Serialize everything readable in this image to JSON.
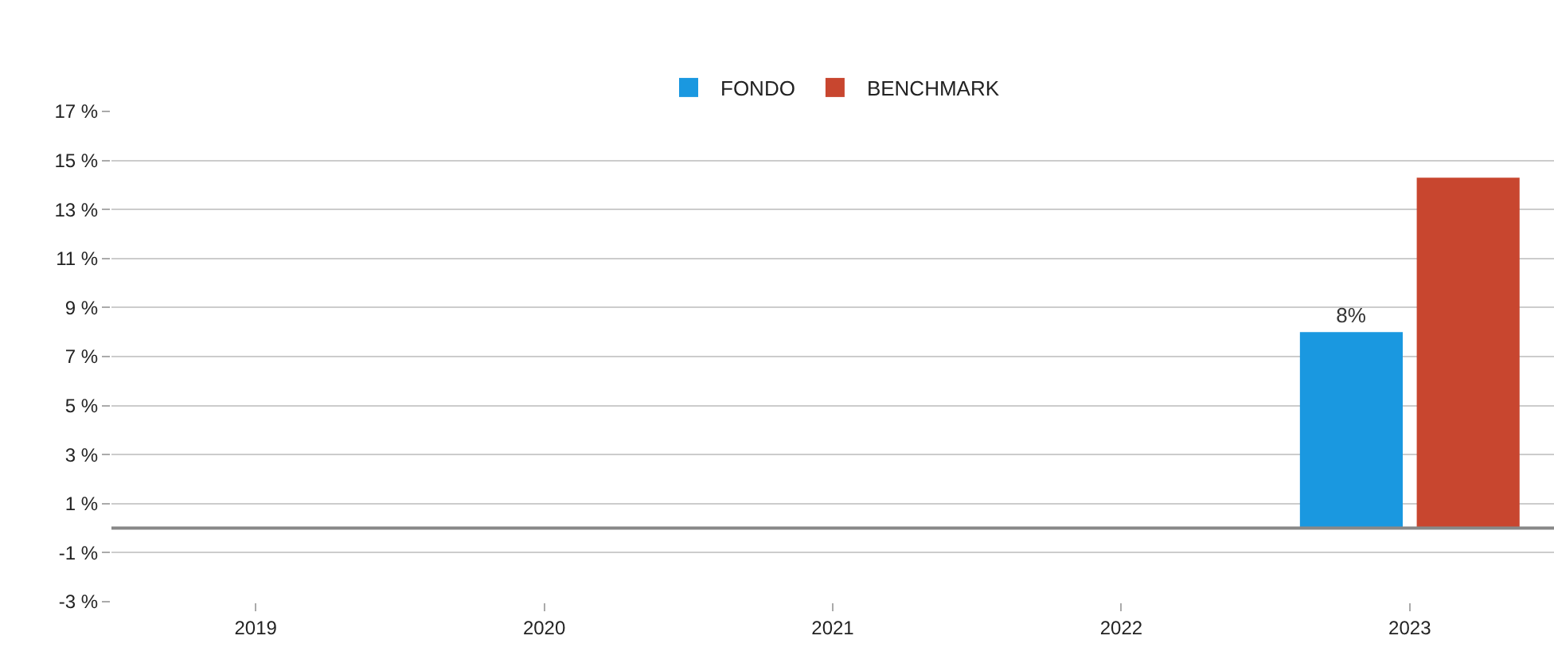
{
  "chart_data": {
    "type": "bar",
    "categories": [
      "2019",
      "2020",
      "2021",
      "2022",
      "2023"
    ],
    "series": [
      {
        "name": "FONDO",
        "color": "#1a98e0",
        "values": [
          null,
          null,
          null,
          null,
          8
        ],
        "value_labels": [
          null,
          null,
          null,
          null,
          "8%"
        ]
      },
      {
        "name": "BENCHMARK",
        "color": "#c8462f",
        "values": [
          null,
          null,
          null,
          null,
          14.3
        ]
      }
    ],
    "ylim": [
      -3,
      17
    ],
    "yticks": [
      {
        "value": -3,
        "label": "-3 %"
      },
      {
        "value": -1,
        "label": "-1 %"
      },
      {
        "value": 1,
        "label": "1 %"
      },
      {
        "value": 3,
        "label": "3 %"
      },
      {
        "value": 5,
        "label": "5 %"
      },
      {
        "value": 7,
        "label": "7 %"
      },
      {
        "value": 9,
        "label": "9 %"
      },
      {
        "value": 11,
        "label": "11 %"
      },
      {
        "value": 13,
        "label": "13 %"
      },
      {
        "value": 15,
        "label": "15 %"
      },
      {
        "value": 17,
        "label": "17 %"
      }
    ],
    "ref_lines": [
      {
        "axis": "y",
        "value": 0,
        "color": "#888888"
      }
    ],
    "grid": "y",
    "legend": "top"
  }
}
